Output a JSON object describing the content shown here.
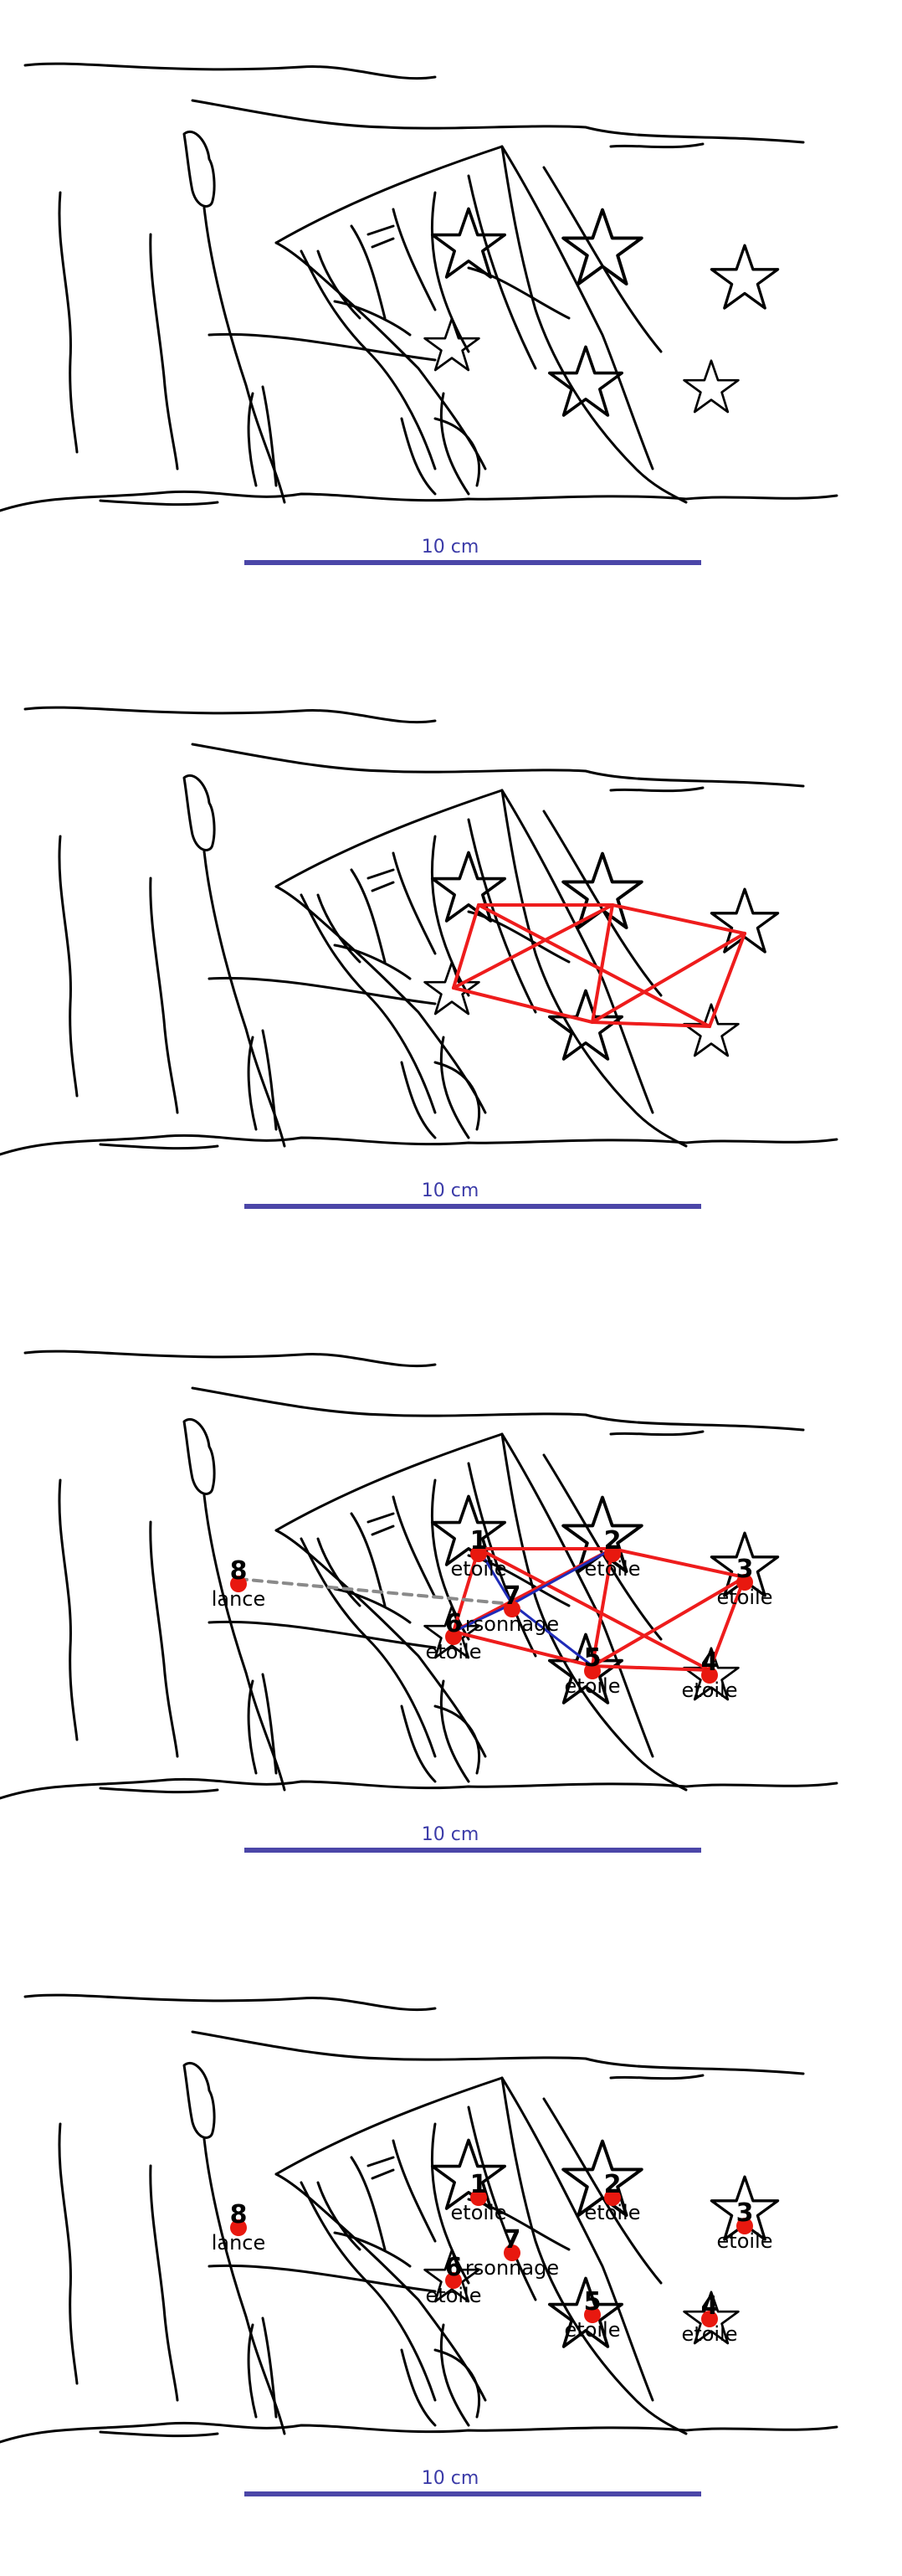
{
  "scale_bar": {
    "label": "10 cm",
    "color": "#4b46a8"
  },
  "colors": {
    "edge_main": "#ee1c1c",
    "edge_secondary": "#1f2bb8",
    "edge_dashed": "#8a8a8a",
    "node": "#e8180f",
    "drawing": "#000000"
  },
  "nodes": [
    {
      "id": "1",
      "label": "etoile"
    },
    {
      "id": "2",
      "label": "etoile"
    },
    {
      "id": "3",
      "label": "etoile"
    },
    {
      "id": "4",
      "label": "etoile"
    },
    {
      "id": "5",
      "label": "etoile"
    },
    {
      "id": "6",
      "label": "etoile"
    },
    {
      "id": "7",
      "label": "rsonnage"
    },
    {
      "id": "8",
      "label": "lance"
    }
  ],
  "edges_main": [
    [
      "1",
      "2"
    ],
    [
      "1",
      "4"
    ],
    [
      "1",
      "6"
    ],
    [
      "2",
      "3"
    ],
    [
      "2",
      "5"
    ],
    [
      "2",
      "6"
    ],
    [
      "3",
      "4"
    ],
    [
      "3",
      "5"
    ],
    [
      "4",
      "5"
    ],
    [
      "5",
      "6"
    ]
  ],
  "edges_secondary": [
    [
      "7",
      "1"
    ],
    [
      "7",
      "2"
    ],
    [
      "7",
      "5"
    ],
    [
      "7",
      "6"
    ]
  ],
  "edges_dashed": [
    [
      "8",
      "7"
    ]
  ],
  "panels": [
    {
      "id": "drawing-only"
    },
    {
      "id": "star-graph"
    },
    {
      "id": "full-graph"
    },
    {
      "id": "labels-only"
    }
  ]
}
